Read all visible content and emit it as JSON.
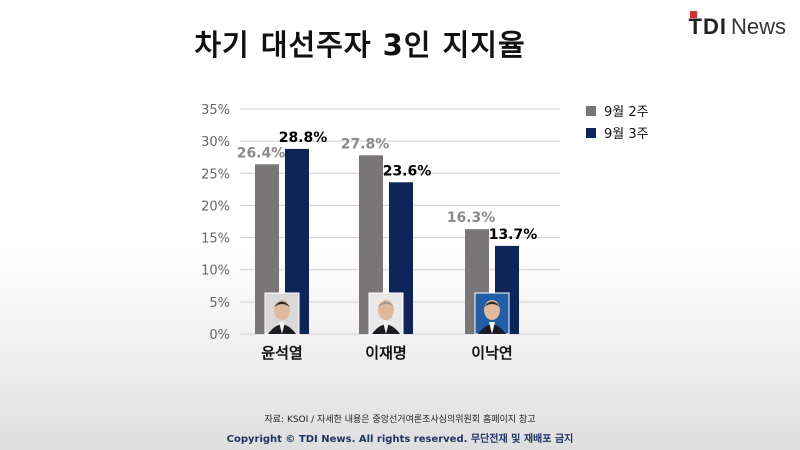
{
  "header": {
    "title": "차기 대선주자 3인 지지율",
    "logo_mark": "TDI",
    "logo_sub": "News"
  },
  "colors": {
    "series1": "#7a7677",
    "series2": "#0e2559",
    "grid": "#cfcfcf",
    "label1": "#8a8a8a",
    "label2": "#000000",
    "photo_bg": [
      "#d9d9d9",
      "#e8e8e8",
      "#1f5fa8"
    ]
  },
  "chart_data": {
    "type": "bar",
    "title": "차기 대선주자 3인 지지율",
    "categories": [
      "윤석열",
      "이재명",
      "이낙연"
    ],
    "series": [
      {
        "name": "9월 2주",
        "values": [
          26.4,
          27.8,
          16.3
        ],
        "labels": [
          "26.4%",
          "27.8%",
          "16.3%"
        ]
      },
      {
        "name": "9월 3주",
        "values": [
          28.8,
          23.6,
          13.7
        ],
        "labels": [
          "28.8%",
          "23.6%",
          "13.7%"
        ]
      }
    ],
    "ylim": [
      0,
      35
    ],
    "yticks": [
      "0%",
      "5%",
      "10%",
      "15%",
      "20%",
      "25%",
      "30%",
      "35%"
    ],
    "grid": true,
    "legend": "top-right"
  },
  "footer": {
    "source": "자료: KSOI / 자세한 내용은 중앙선거여론조사심의위원회 홈페이지 참고",
    "copyright": "Copyright © TDI News. All rights reserved. 무단전재 및 재배포 금지"
  }
}
